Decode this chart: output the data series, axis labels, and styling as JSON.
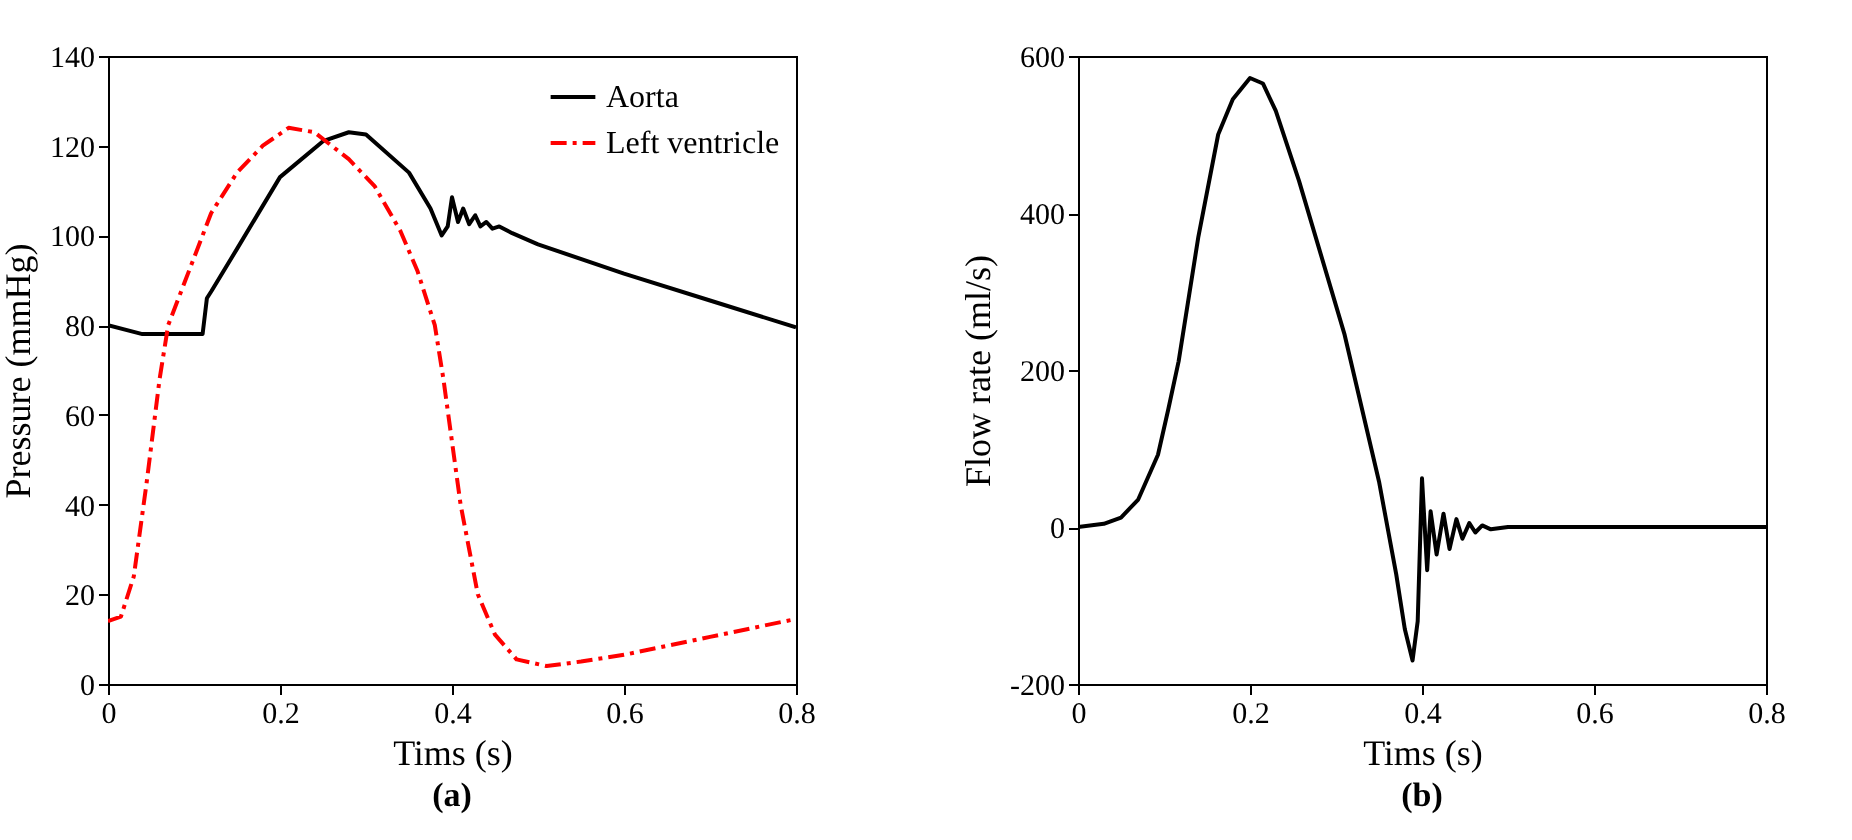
{
  "chart_data": [
    {
      "type": "line",
      "title": "(a)",
      "xlabel": "Tims (s)",
      "ylabel": "Pressure (mmHg)",
      "xlim": [
        0,
        0.8
      ],
      "xticks": [
        0,
        0.2,
        0.4,
        0.6,
        0.8
      ],
      "ylim": [
        0,
        140
      ],
      "yticks": [
        0,
        20,
        40,
        60,
        80,
        100,
        120,
        140
      ],
      "grid": false,
      "legend": "top right",
      "series": [
        {
          "name": "Aorta",
          "color": "#000000",
          "line_style": "solid",
          "x": [
            0,
            0.04,
            0.11,
            0.115,
            0.12,
            0.15,
            0.2,
            0.25,
            0.28,
            0.3,
            0.35,
            0.375,
            0.388,
            0.395,
            0.4,
            0.407,
            0.413,
            0.42,
            0.427,
            0.433,
            0.44,
            0.447,
            0.455,
            0.47,
            0.5,
            0.6,
            0.7,
            0.8
          ],
          "values": [
            80,
            78,
            78,
            86,
            87.5,
            97,
            113,
            121,
            123,
            122.5,
            114,
            106,
            100,
            102,
            108.5,
            103,
            106,
            102.5,
            104.5,
            102,
            103,
            101.5,
            102,
            100.5,
            98,
            91.5,
            85.5,
            79.5
          ]
        },
        {
          "name": "Left ventricle",
          "color": "#ff0000",
          "line_style": "dashdot",
          "x": [
            0,
            0.015,
            0.03,
            0.045,
            0.06,
            0.07,
            0.09,
            0.12,
            0.15,
            0.18,
            0.21,
            0.24,
            0.28,
            0.31,
            0.34,
            0.36,
            0.38,
            0.39,
            0.4,
            0.41,
            0.43,
            0.45,
            0.475,
            0.51,
            0.55,
            0.6,
            0.65,
            0.7,
            0.75,
            0.8
          ],
          "values": [
            14,
            15,
            24,
            45,
            68,
            80,
            90,
            105,
            114,
            120,
            124,
            123,
            117,
            111,
            101,
            92,
            80,
            68,
            54,
            40,
            20,
            11,
            5.5,
            4,
            5,
            6.5,
            8.5,
            10.5,
            12.5,
            14.5
          ]
        }
      ]
    },
    {
      "type": "line",
      "title": "(b)",
      "xlabel": "Tims (s)",
      "ylabel": "Flow rate (ml/s)",
      "xlim": [
        0,
        0.8
      ],
      "xticks": [
        0,
        0.2,
        0.4,
        0.6,
        0.8
      ],
      "ylim": [
        -200,
        600
      ],
      "yticks": [
        -200,
        0,
        200,
        400,
        600
      ],
      "grid": false,
      "series": [
        {
          "color": "#000000",
          "line_style": "solid",
          "x": [
            0,
            0.03,
            0.05,
            0.07,
            0.093,
            0.105,
            0.117,
            0.14,
            0.163,
            0.18,
            0.2,
            0.215,
            0.23,
            0.257,
            0.31,
            0.35,
            0.37,
            0.38,
            0.389,
            0.395,
            0.4,
            0.406,
            0.41,
            0.417,
            0.425,
            0.432,
            0.44,
            0.447,
            0.455,
            0.462,
            0.47,
            0.48,
            0.5,
            0.8
          ],
          "values": [
            0,
            4,
            12,
            35,
            92,
            150,
            211,
            370,
            500,
            545,
            572,
            565,
            530,
            441,
            245,
            58,
            -60,
            -130,
            -170,
            -120,
            62,
            -55,
            20,
            -35,
            17,
            -28,
            10,
            -15,
            5,
            -7,
            2,
            -3,
            0,
            0
          ]
        }
      ]
    }
  ]
}
